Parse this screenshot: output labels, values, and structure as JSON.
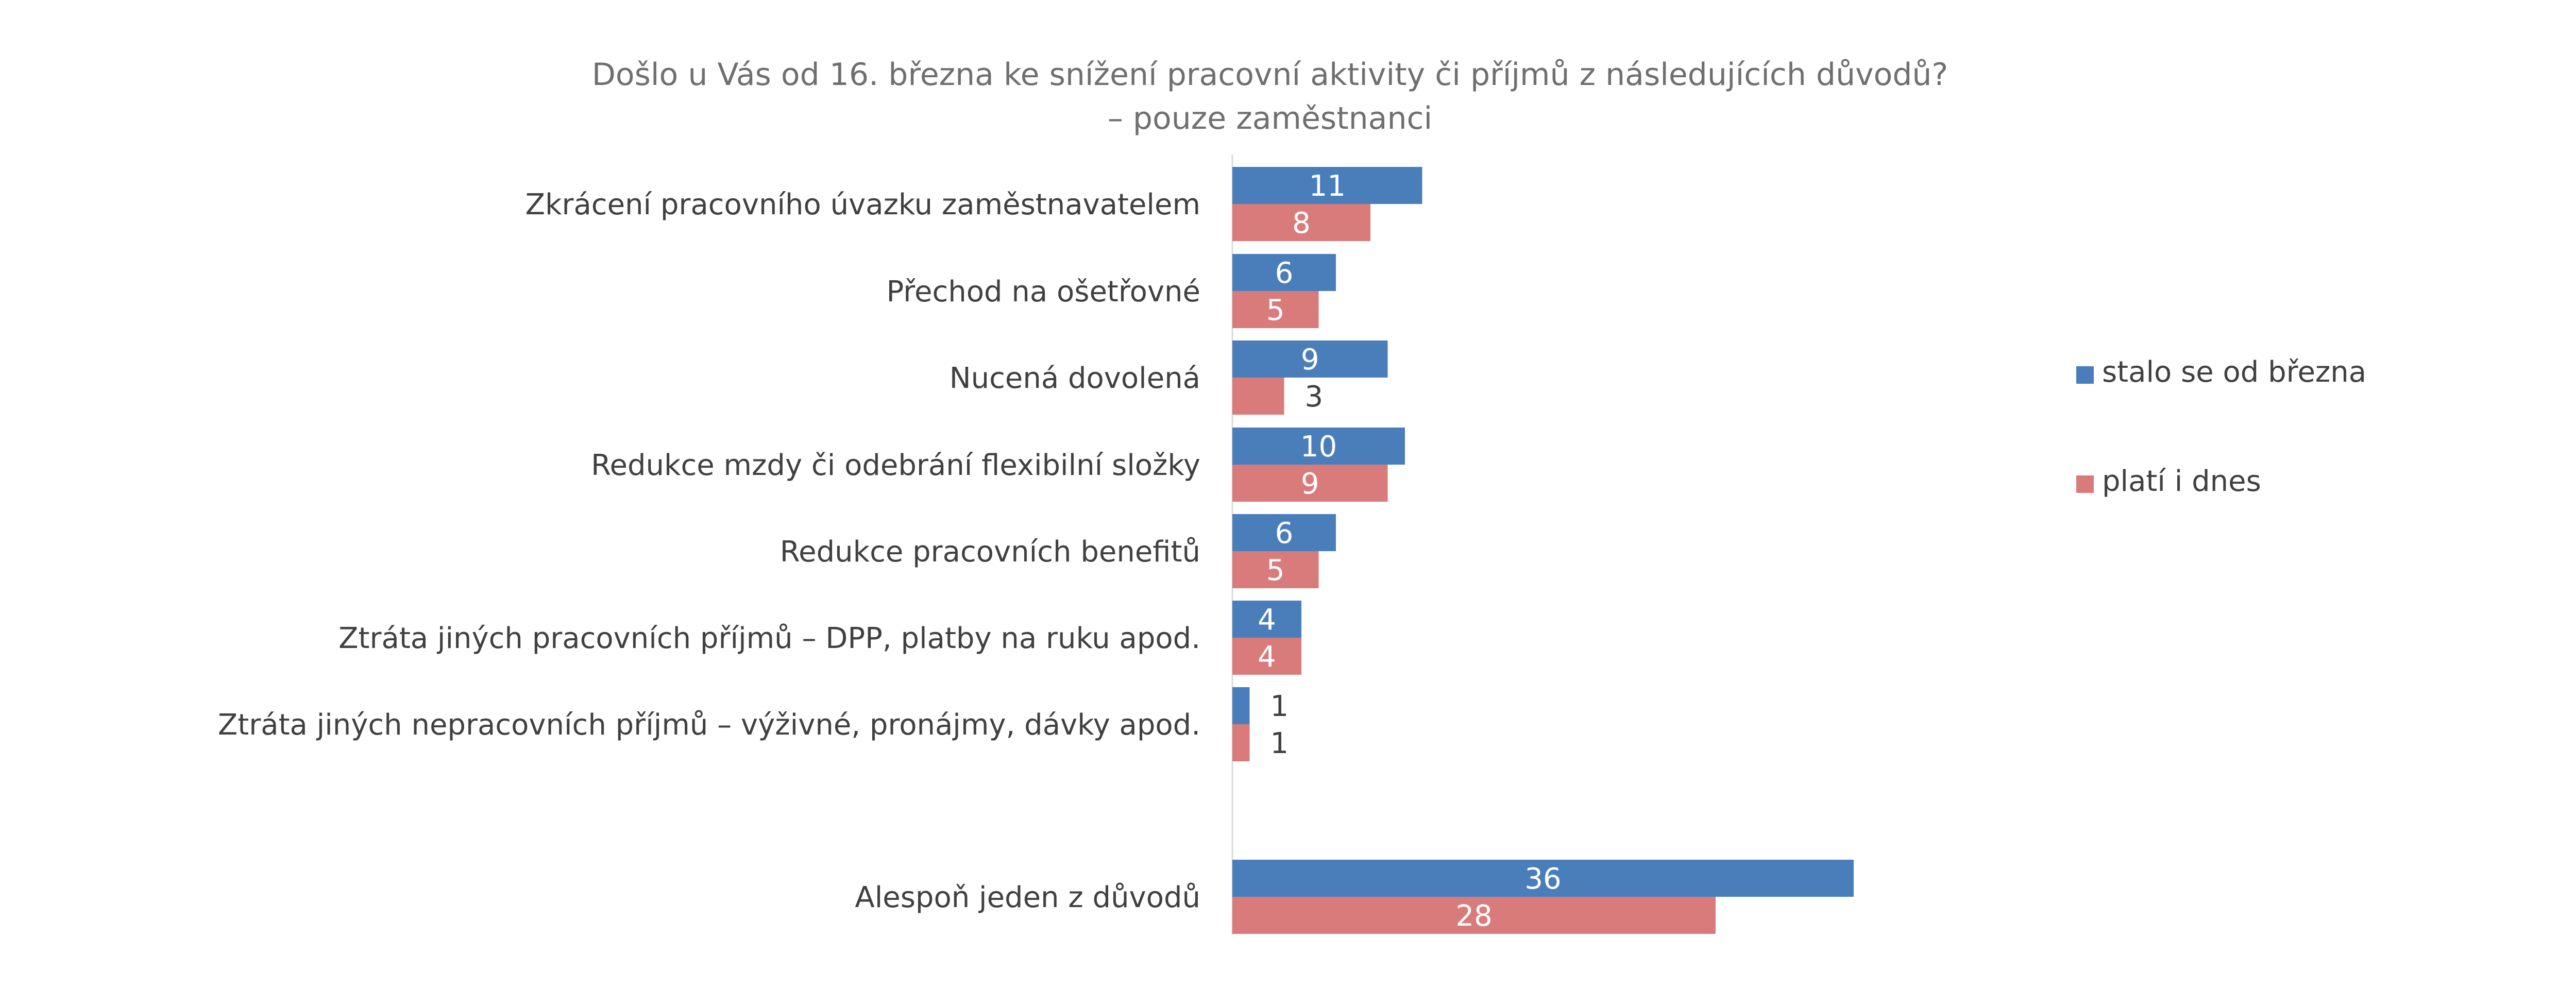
{
  "chart_data": {
    "type": "bar",
    "orientation": "horizontal",
    "title": "Došlo u Vás od 16. března ke snížení pracovní aktivity či příjmů z následujících důvodů?",
    "subtitle": "– pouze zaměstnanci",
    "categories": [
      "Zkrácení pracovního úvazku zaměstnavatelem",
      "Přechod na ošetřovné",
      "Nucená dovolená",
      "Redukce mzdy či odebrání flexibilní složky",
      "Redukce pracovních benefitů",
      "Ztráta jiných pracovních příjmů – DPP, platby na ruku apod.",
      "Ztráta jiných nepracovních příjmů – výživné, pronájmy, dávky apod.",
      "Alespoň jeden z důvodů"
    ],
    "series": [
      {
        "name": "stalo se od března",
        "color": "#4a7ebb",
        "values": [
          11,
          6,
          9,
          10,
          6,
          4,
          1,
          36
        ]
      },
      {
        "name": "platí i dnes",
        "color": "#d97b7b",
        "values": [
          8,
          5,
          3,
          9,
          5,
          4,
          1,
          28
        ]
      }
    ],
    "xlim": [
      0,
      40
    ],
    "grid": false,
    "legend_position": "right",
    "axis_line_color": "#d9d9d9"
  }
}
